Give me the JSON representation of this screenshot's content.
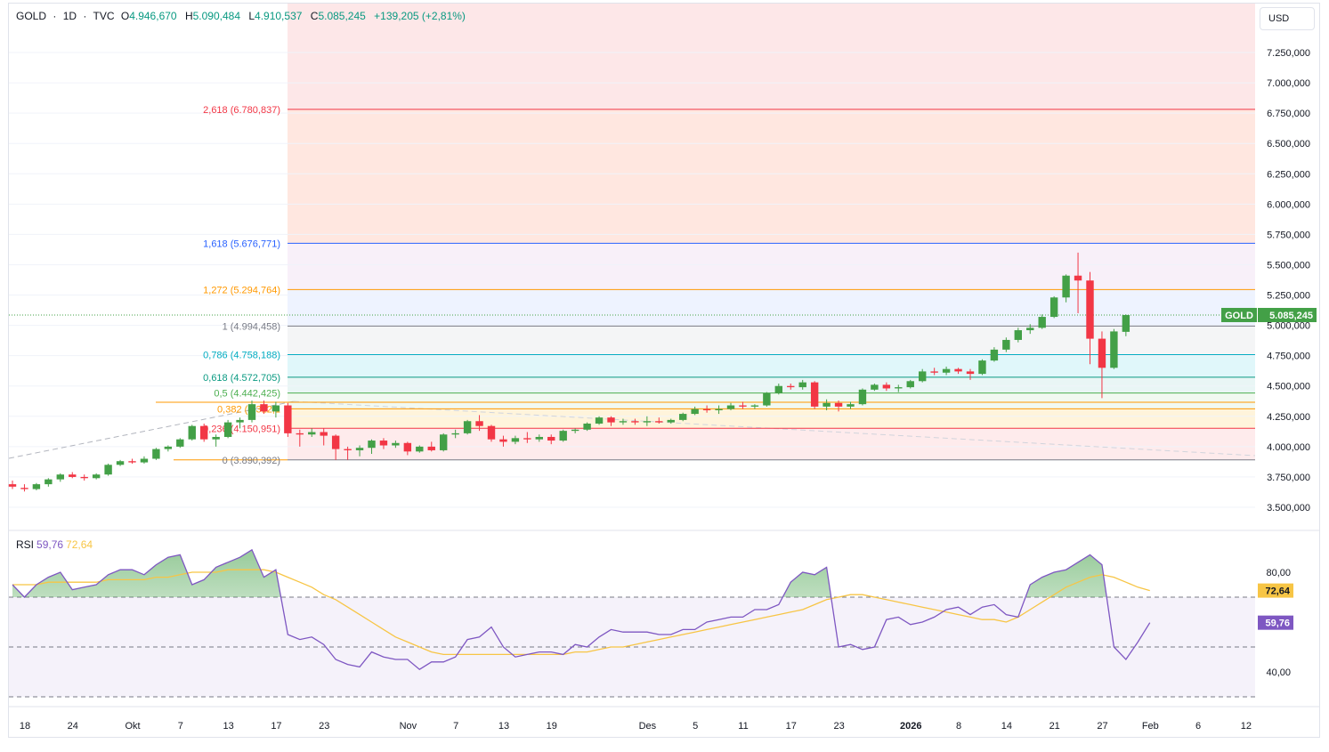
{
  "header": {
    "symbol": "GOLD",
    "sep1": "·",
    "interval": "1D",
    "sep2": "·",
    "source": "TVC",
    "o_label": "O",
    "o_value": "4.946,670",
    "h_label": "H",
    "h_value": "5.090,484",
    "l_label": "L",
    "l_value": "4.910,537",
    "c_label": "C",
    "c_value": "5.085,245",
    "change": "+139,205 (+2,81%)"
  },
  "currency": "USD",
  "rsi_header": {
    "label": "RSI",
    "rsi_value": "59,76",
    "ma_value": "72,64"
  },
  "price_badge": {
    "symbol": "GOLD",
    "value": "5.085,245"
  },
  "rsi_badges": [
    {
      "value": "72,64",
      "color": "#f7c545"
    },
    {
      "value": "59,76",
      "color": "#7e57c2"
    }
  ],
  "colors": {
    "up": "#43a047",
    "down": "#f23645",
    "rsi": "#7e57c2",
    "rsi_ma": "#f7c545"
  },
  "chart_data": [
    {
      "type": "candlestick",
      "title": "GOLD · 1D · TVC",
      "y_ticks": [
        "7.250,000",
        "7.000,000",
        "6.750,000",
        "6.500,000",
        "6.250,000",
        "6.000,000",
        "5.750,000",
        "5.500,000",
        "5.250,000",
        "5.000,000",
        "4.750,000",
        "4.500,000",
        "4.250,000",
        "4.000,000",
        "3.750,000",
        "3.500,000"
      ],
      "y_tick_values": [
        7250,
        7000,
        6750,
        6500,
        6250,
        6000,
        5750,
        5500,
        5250,
        5000,
        4750,
        4500,
        4250,
        4000,
        3750,
        3500
      ],
      "ylim": [
        3400,
        7600
      ],
      "x_ticks": [
        {
          "label": "18",
          "i": 0
        },
        {
          "label": "24",
          "i": 4
        },
        {
          "label": "Okt",
          "i": 9
        },
        {
          "label": "7",
          "i": 13
        },
        {
          "label": "13",
          "i": 17
        },
        {
          "label": "17",
          "i": 21
        },
        {
          "label": "23",
          "i": 25
        },
        {
          "label": "Nov",
          "i": 32
        },
        {
          "label": "7",
          "i": 36
        },
        {
          "label": "13",
          "i": 40
        },
        {
          "label": "19",
          "i": 44
        },
        {
          "label": "Des",
          "i": 52
        },
        {
          "label": "5",
          "i": 56
        },
        {
          "label": "11",
          "i": 60
        },
        {
          "label": "17",
          "i": 64
        },
        {
          "label": "23",
          "i": 68
        },
        {
          "label": "2026",
          "i": 74
        },
        {
          "label": "8",
          "i": 78
        },
        {
          "label": "14",
          "i": 82
        },
        {
          "label": "21",
          "i": 86
        },
        {
          "label": "27",
          "i": 90
        },
        {
          "label": "Feb",
          "i": 94
        },
        {
          "label": "6",
          "i": 98
        },
        {
          "label": "12",
          "i": 102
        }
      ],
      "candles": [
        [
          3690,
          3720,
          3650,
          3670
        ],
        [
          3660,
          3690,
          3630,
          3650
        ],
        [
          3650,
          3700,
          3640,
          3690
        ],
        [
          3690,
          3740,
          3670,
          3730
        ],
        [
          3730,
          3780,
          3710,
          3770
        ],
        [
          3770,
          3790,
          3740,
          3750
        ],
        [
          3750,
          3770,
          3720,
          3740
        ],
        [
          3740,
          3780,
          3730,
          3770
        ],
        [
          3770,
          3860,
          3760,
          3850
        ],
        [
          3850,
          3890,
          3840,
          3880
        ],
        [
          3880,
          3900,
          3860,
          3870
        ],
        [
          3870,
          3920,
          3860,
          3900
        ],
        [
          3900,
          3990,
          3890,
          3980
        ],
        [
          3980,
          4010,
          3960,
          4000
        ],
        [
          4000,
          4070,
          3990,
          4060
        ],
        [
          4060,
          4180,
          4050,
          4170
        ],
        [
          4170,
          4190,
          4040,
          4060
        ],
        [
          4060,
          4100,
          4000,
          4080
        ],
        [
          4080,
          4220,
          4070,
          4200
        ],
        [
          4200,
          4240,
          4150,
          4220
        ],
        [
          4220,
          4380,
          4200,
          4350
        ],
        [
          4350,
          4380,
          4270,
          4290
        ],
        [
          4290,
          4370,
          4240,
          4340
        ],
        [
          4340,
          4360,
          4080,
          4110
        ],
        [
          4110,
          4140,
          4000,
          4100
        ],
        [
          4100,
          4150,
          4080,
          4120
        ],
        [
          4120,
          4150,
          4010,
          4090
        ],
        [
          4090,
          4100,
          3890,
          3980
        ],
        [
          3980,
          4000,
          3890,
          3970
        ],
        [
          3970,
          4010,
          3920,
          3990
        ],
        [
          3990,
          4060,
          3940,
          4050
        ],
        [
          4050,
          4070,
          3980,
          4010
        ],
        [
          4010,
          4050,
          3990,
          4030
        ],
        [
          4030,
          4040,
          3930,
          3960
        ],
        [
          3960,
          4010,
          3950,
          4000
        ],
        [
          4000,
          4040,
          3960,
          3970
        ],
        [
          3970,
          4110,
          3960,
          4100
        ],
        [
          4100,
          4140,
          4070,
          4110
        ],
        [
          4110,
          4220,
          4100,
          4210
        ],
        [
          4210,
          4260,
          4130,
          4170
        ],
        [
          4170,
          4180,
          4040,
          4060
        ],
        [
          4060,
          4090,
          4000,
          4040
        ],
        [
          4040,
          4090,
          4020,
          4070
        ],
        [
          4070,
          4120,
          4030,
          4060
        ],
        [
          4060,
          4100,
          4040,
          4080
        ],
        [
          4080,
          4100,
          4020,
          4050
        ],
        [
          4050,
          4140,
          4040,
          4130
        ],
        [
          4130,
          4150,
          4110,
          4140
        ],
        [
          4140,
          4200,
          4130,
          4190
        ],
        [
          4190,
          4250,
          4180,
          4240
        ],
        [
          4240,
          4250,
          4170,
          4200
        ],
        [
          4200,
          4230,
          4180,
          4210
        ],
        [
          4210,
          4230,
          4180,
          4200
        ],
        [
          4200,
          4250,
          4170,
          4210
        ],
        [
          4210,
          4240,
          4190,
          4200
        ],
        [
          4200,
          4230,
          4190,
          4220
        ],
        [
          4220,
          4280,
          4210,
          4270
        ],
        [
          4270,
          4330,
          4260,
          4310
        ],
        [
          4310,
          4340,
          4280,
          4300
        ],
        [
          4300,
          4340,
          4270,
          4310
        ],
        [
          4310,
          4360,
          4300,
          4340
        ],
        [
          4340,
          4370,
          4310,
          4330
        ],
        [
          4330,
          4350,
          4310,
          4340
        ],
        [
          4340,
          4450,
          4330,
          4440
        ],
        [
          4440,
          4520,
          4430,
          4500
        ],
        [
          4500,
          4520,
          4470,
          4490
        ],
        [
          4490,
          4550,
          4470,
          4530
        ],
        [
          4530,
          4540,
          4310,
          4330
        ],
        [
          4330,
          4390,
          4300,
          4360
        ],
        [
          4360,
          4380,
          4290,
          4330
        ],
        [
          4330,
          4370,
          4310,
          4350
        ],
        [
          4350,
          4480,
          4340,
          4470
        ],
        [
          4470,
          4520,
          4460,
          4510
        ],
        [
          4510,
          4530,
          4460,
          4480
        ],
        [
          4480,
          4510,
          4450,
          4490
        ],
        [
          4490,
          4550,
          4480,
          4540
        ],
        [
          4540,
          4640,
          4530,
          4620
        ],
        [
          4620,
          4650,
          4590,
          4610
        ],
        [
          4610,
          4660,
          4590,
          4640
        ],
        [
          4640,
          4650,
          4600,
          4620
        ],
        [
          4620,
          4640,
          4550,
          4600
        ],
        [
          4600,
          4720,
          4590,
          4710
        ],
        [
          4710,
          4820,
          4700,
          4800
        ],
        [
          4800,
          4900,
          4780,
          4880
        ],
        [
          4880,
          4980,
          4860,
          4960
        ],
        [
          4960,
          5010,
          4930,
          4980
        ],
        [
          4980,
          5090,
          4970,
          5070
        ],
        [
          5070,
          5240,
          5060,
          5230
        ],
        [
          5230,
          5420,
          5190,
          5410
        ],
        [
          5410,
          5600,
          5100,
          5370
        ],
        [
          5370,
          5440,
          4680,
          4890
        ],
        [
          4890,
          4950,
          4400,
          4650
        ],
        [
          4650,
          4970,
          4640,
          4950
        ],
        [
          4946.67,
          5090.484,
          4910.537,
          5085.245
        ]
      ],
      "fib_levels": [
        {
          "ratio": "2,618",
          "price": 6780.837,
          "label": "2,618 (6.780,837)",
          "color": "#f23645"
        },
        {
          "ratio": "1,618",
          "price": 5676.771,
          "label": "1,618 (5.676,771)",
          "color": "#2962ff"
        },
        {
          "ratio": "1,272",
          "price": 5294.764,
          "label": "1,272 (5.294,764)",
          "color": "#ff9800"
        },
        {
          "ratio": "1",
          "price": 4994.458,
          "label": "1 (4.994,458)",
          "color": "#787b86"
        },
        {
          "ratio": "0,786",
          "price": 4758.188,
          "label": "0,786 (4.758,188)",
          "color": "#00acc1"
        },
        {
          "ratio": "0,618",
          "price": 4572.705,
          "label": "0,618 (4.572,705)",
          "color": "#089981"
        },
        {
          "ratio": "0,5",
          "price": 4442.425,
          "label": "0,5 (4.442,425)",
          "color": "#4caf50"
        },
        {
          "ratio": "0,382",
          "price": 4312.145,
          "label": "0,382 (4.312,1",
          "color": "#ff9800"
        },
        {
          "ratio": "0,236",
          "price": 4150.951,
          "label": "0,236 (4.150,951)",
          "color": "#f23645"
        },
        {
          "ratio": "0",
          "price": 3890.392,
          "label": "0 (3.890,392)",
          "color": "#787b86"
        }
      ]
    },
    {
      "type": "line",
      "title": "RSI",
      "y_ticks": [
        "80,00",
        "40,00"
      ],
      "y_tick_values": [
        80,
        40
      ],
      "bands": [
        70,
        30
      ],
      "ylim": [
        10,
        100
      ],
      "series": [
        {
          "name": "RSI",
          "color": "#7e57c2",
          "values": [
            75,
            70,
            75,
            78,
            80,
            73,
            74,
            75,
            79,
            81,
            81,
            79,
            83,
            86,
            87,
            75,
            77,
            82,
            84,
            86,
            89,
            78,
            81,
            55,
            53,
            54,
            51,
            45,
            43,
            42,
            48,
            46,
            45,
            45,
            41,
            44,
            44,
            46,
            53,
            54,
            58,
            50,
            46,
            47,
            48,
            48,
            47,
            51,
            50,
            54,
            57,
            56,
            56,
            56,
            55,
            55,
            57,
            57,
            60,
            61,
            62,
            62,
            65,
            65,
            67,
            76,
            80,
            79,
            82,
            50,
            51,
            49,
            50,
            61,
            62,
            59,
            60,
            62,
            65,
            66,
            63,
            66,
            67,
            63,
            62,
            75,
            78,
            80,
            81,
            84,
            87,
            83,
            50,
            45,
            52,
            59.76
          ]
        },
        {
          "name": "MA",
          "color": "#f7c545",
          "values": [
            75,
            75,
            75,
            76,
            76,
            76,
            76,
            76,
            77,
            77,
            77,
            77,
            78,
            78,
            79,
            80,
            80,
            80,
            81,
            81,
            81,
            81,
            80,
            78,
            76,
            74,
            71,
            69,
            66,
            63,
            60,
            57,
            54,
            52,
            50,
            48,
            47,
            47,
            47,
            47,
            47,
            47,
            47,
            47,
            47,
            47,
            47,
            48,
            48,
            49,
            50,
            50,
            51,
            52,
            53,
            54,
            55,
            56,
            57,
            58,
            59,
            60,
            61,
            62,
            63,
            64,
            65,
            67,
            69,
            70,
            71,
            71,
            70,
            69,
            68,
            67,
            66,
            65,
            64,
            63,
            62,
            61,
            61,
            60,
            62,
            65,
            68,
            71,
            74,
            76,
            78,
            79,
            78,
            76,
            74,
            72.64
          ]
        }
      ]
    }
  ]
}
